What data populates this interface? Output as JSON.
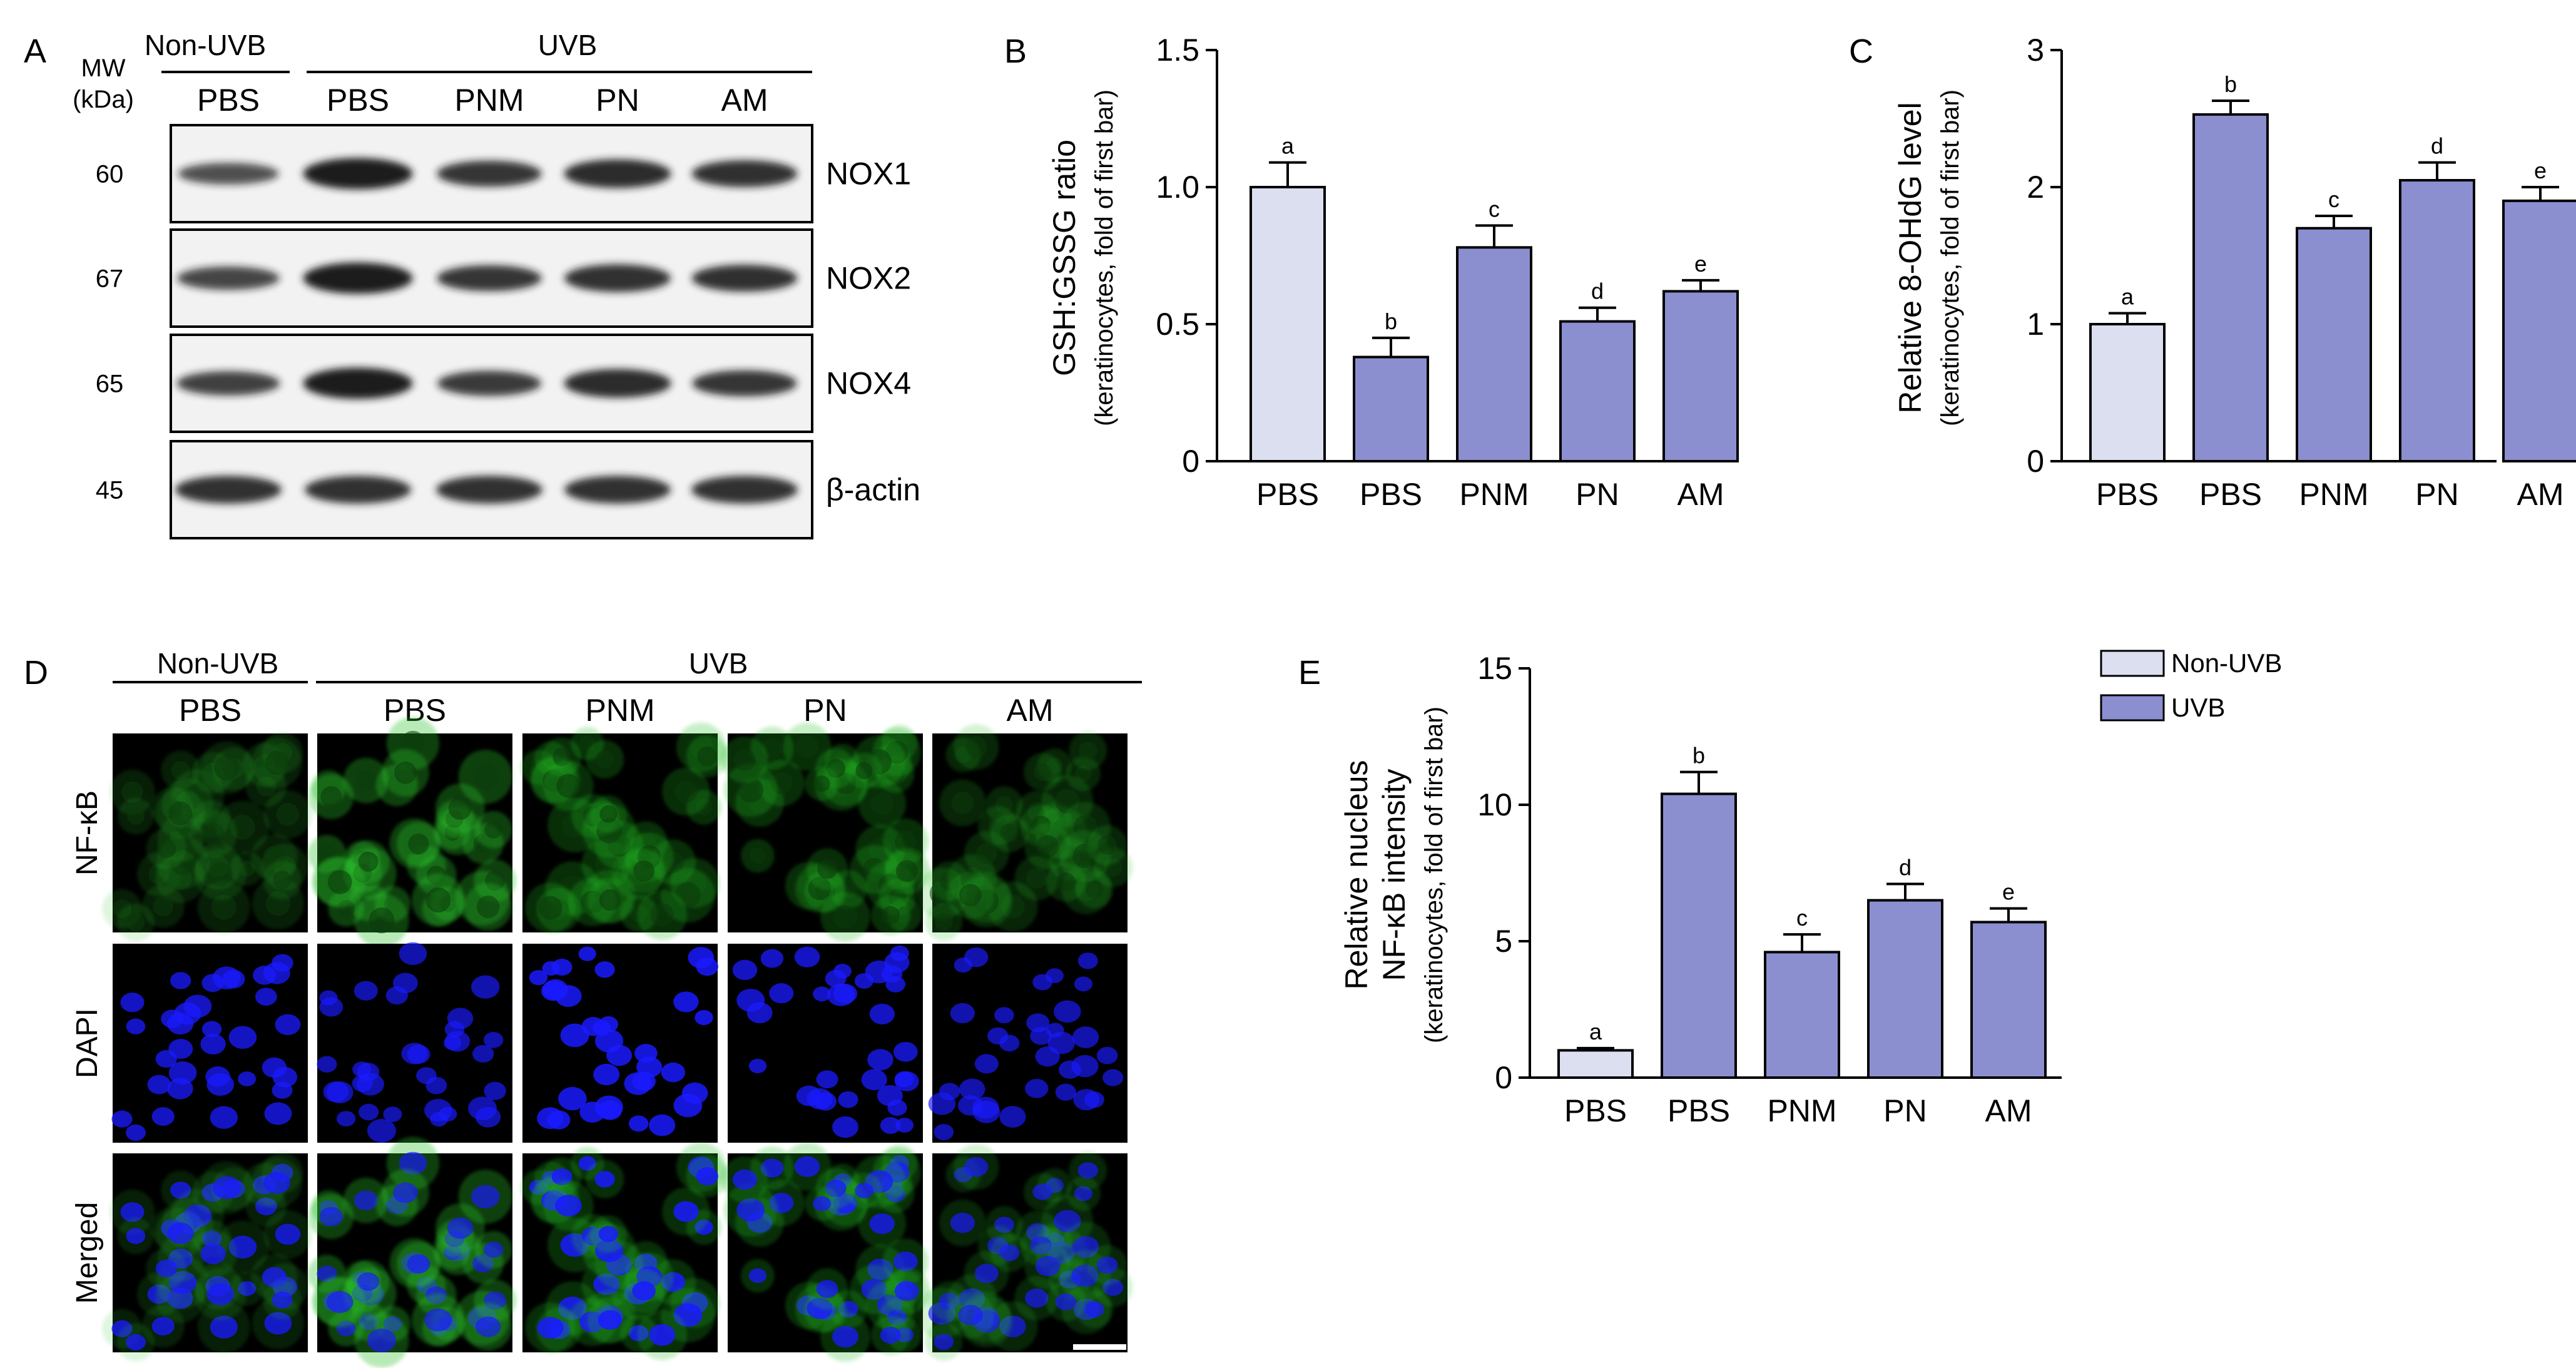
{
  "figure": {
    "panel_labels": [
      "A",
      "B",
      "C",
      "D",
      "E"
    ],
    "colors": {
      "non_uvb_fill": "#dcdff0",
      "uvb_fill": "#8b8fcf",
      "axis": "#000000",
      "blot_background": "#f2f2f2",
      "band": "#1b1b1b",
      "nfkb_green": "#2bbf2b",
      "dapi_blue": "#1a1aff"
    }
  },
  "panelA": {
    "mw_header": "MW",
    "kda_header": "(kDa)",
    "group_left": "Non-UVB",
    "group_right": "UVB",
    "lanes": [
      "PBS",
      "PBS",
      "PNM",
      "PN",
      "AM"
    ],
    "rows": [
      {
        "mw": "60",
        "protein": "NOX1",
        "band_intensity": [
          0.45,
          1.0,
          0.7,
          0.85,
          0.75
        ]
      },
      {
        "mw": "67",
        "protein": "NOX2",
        "band_intensity": [
          0.55,
          1.0,
          0.7,
          0.8,
          0.75
        ]
      },
      {
        "mw": "65",
        "protein": "NOX4",
        "band_intensity": [
          0.6,
          1.0,
          0.65,
          0.85,
          0.7
        ]
      },
      {
        "mw": "45",
        "protein": "β-actin",
        "band_intensity": [
          0.8,
          0.8,
          0.8,
          0.8,
          0.8
        ]
      }
    ]
  },
  "panelD": {
    "group_left": "Non-UVB",
    "group_right": "UVB",
    "columns": [
      "PBS",
      "PBS",
      "PNM",
      "PN",
      "AM"
    ],
    "rows": [
      "NF-κB",
      "DAPI",
      "Merged"
    ]
  },
  "legend": {
    "items": [
      {
        "label": "Non-UVB",
        "color": "#dcdff0"
      },
      {
        "label": "UVB",
        "color": "#8b8fcf"
      }
    ]
  },
  "chart_data": [
    {
      "panel": "B",
      "type": "bar",
      "categories": [
        "PBS",
        "PBS",
        "PNM",
        "PN",
        "AM"
      ],
      "values": [
        1.0,
        0.38,
        0.78,
        0.51,
        0.62
      ],
      "errors": [
        0.09,
        0.07,
        0.08,
        0.05,
        0.04
      ],
      "letters": [
        "a",
        "b",
        "c",
        "d",
        "e"
      ],
      "ylabel": "GSH:GSSG ratio",
      "ylabel2": "(keratinocytes, fold of first bar)",
      "ylim": [
        0,
        1.5
      ],
      "yticks": [
        "0",
        "0.5",
        "1.0",
        "1.5"
      ],
      "ytick_values": [
        0,
        0.5,
        1.0,
        1.5
      ]
    },
    {
      "panel": "C",
      "type": "bar",
      "categories": [
        "PBS",
        "PBS",
        "PNM",
        "PN",
        "AM"
      ],
      "values": [
        1.0,
        2.53,
        1.7,
        2.05,
        1.9
      ],
      "errors": [
        0.08,
        0.1,
        0.09,
        0.13,
        0.1
      ],
      "letters": [
        "a",
        "b",
        "c",
        "d",
        "e"
      ],
      "ylabel": "Relative 8-OHdG level",
      "ylabel2": "(keratinocytes, fold of first bar)",
      "ylim": [
        0,
        3
      ],
      "yticks": [
        "0",
        "1",
        "2",
        "3"
      ],
      "ytick_values": [
        0,
        1,
        2,
        3
      ]
    },
    {
      "panel": "E",
      "type": "bar",
      "categories": [
        "PBS",
        "PBS",
        "PNM",
        "PN",
        "AM"
      ],
      "values": [
        1.0,
        10.4,
        4.6,
        6.5,
        5.7
      ],
      "errors": [
        0.08,
        0.8,
        0.65,
        0.6,
        0.5
      ],
      "letters": [
        "a",
        "b",
        "c",
        "d",
        "e"
      ],
      "ylabel_lines": [
        "Relative nucleus",
        "NF-κB intensity"
      ],
      "ylabel2": "(keratinocytes, fold of first bar)",
      "ylim": [
        0,
        15
      ],
      "yticks": [
        "0",
        "5",
        "10",
        "15"
      ],
      "ytick_values": [
        0,
        5,
        10,
        15
      ]
    }
  ]
}
